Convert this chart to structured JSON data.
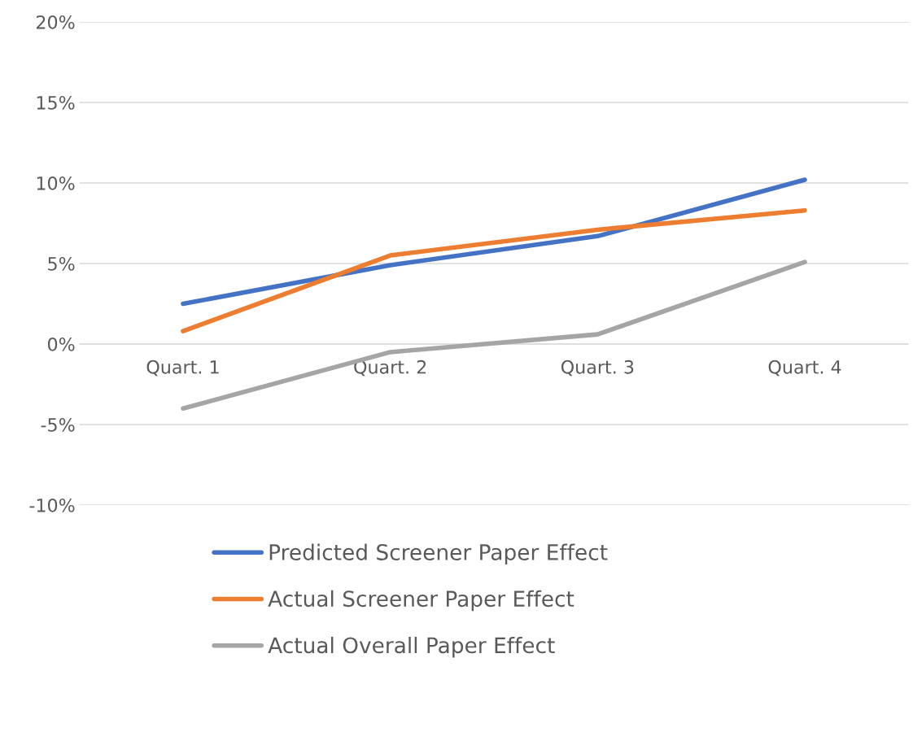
{
  "chart_data": {
    "type": "line",
    "categories": [
      "Quart. 1",
      "Quart. 2",
      "Quart. 3",
      "Quart. 4"
    ],
    "series": [
      {
        "name": "Predicted Screener Paper Effect",
        "color": "#4472c4",
        "values": [
          2.5,
          4.9,
          6.7,
          10.2
        ]
      },
      {
        "name": "Actual Screener Paper Effect",
        "color": "#ed7d31",
        "values": [
          0.8,
          5.5,
          7.1,
          8.3
        ]
      },
      {
        "name": "Actual Overall Paper Effect",
        "color": "#a5a5a5",
        "values": [
          -4.0,
          -0.5,
          0.6,
          5.1
        ]
      }
    ],
    "ylim": [
      -10,
      20
    ],
    "yticks": [
      {
        "value": -10,
        "label": "-10%"
      },
      {
        "value": -5,
        "label": "-5%"
      },
      {
        "value": 0,
        "label": "0%"
      },
      {
        "value": 5,
        "label": "5%"
      },
      {
        "value": 10,
        "label": "10%"
      },
      {
        "value": 15,
        "label": "15%"
      },
      {
        "value": 20,
        "label": "20%"
      }
    ],
    "grid": "y",
    "legend": "bottom",
    "marker": "none",
    "line_style": "solid"
  }
}
